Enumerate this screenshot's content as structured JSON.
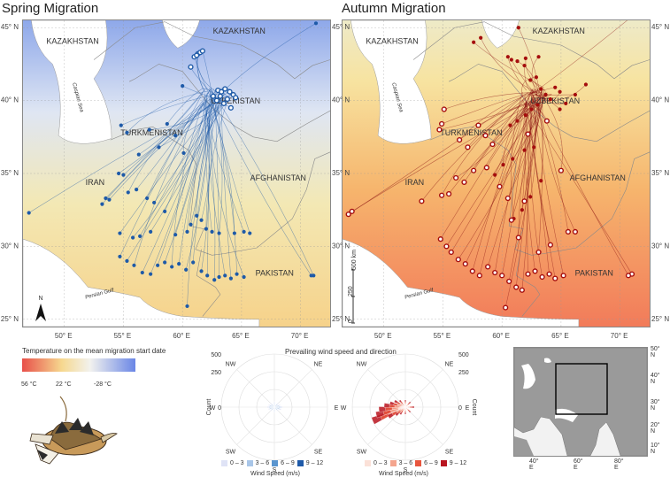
{
  "panels": {
    "spring_title": "Spring Migration",
    "autumn_title": "Autumn Migration"
  },
  "map_labels": {
    "lon_ticks": [
      "50° E",
      "55° E",
      "60° E",
      "65° E",
      "70° E"
    ],
    "lat_ticks": [
      "45° N",
      "40° N",
      "35° N",
      "30° N",
      "25° N"
    ],
    "countries": {
      "kazakhstan": "KAZAKHSTAN",
      "uzbekistan": "UZBEKISTAN",
      "turkmenistan": "TURKMENISTAN",
      "iran": "IRAN",
      "afghanistan": "AFGHANISTAN",
      "pakistan": "PAKISTAN"
    },
    "seas": {
      "aral": "Aral Sea",
      "caspian": "Caspian Sea",
      "gulf": "Persian Gulf"
    },
    "north": "N",
    "scalebar": [
      "500 km",
      "250",
      "0"
    ]
  },
  "temperature_legend": {
    "title": "Temperature on the mean migration start date",
    "labels": [
      "56 °C",
      "22 °C",
      "-28 °C"
    ],
    "colors": [
      "#e8504a",
      "#f6d88f",
      "#f2f2ee",
      "#6a86e6"
    ]
  },
  "wind_rose": {
    "title": "Prevailing wind speed and direction",
    "directions": [
      "N",
      "NE",
      "E",
      "SE",
      "S",
      "SW",
      "W",
      "NW"
    ],
    "count_label": "Count",
    "spring_counts": [
      "500",
      "250",
      "0"
    ],
    "autumn_counts": [
      "500",
      "250",
      "0"
    ],
    "legend_title": "Wind Speed (m/s)",
    "speed_bins": [
      "0 – 3",
      "3 – 6",
      "6 – 9",
      "9 – 12"
    ],
    "spring_colors": [
      "#dfe3f6",
      "#a9c6e8",
      "#5a95cf",
      "#1f5aa8"
    ],
    "autumn_colors": [
      "#fbe1d8",
      "#f4a58e",
      "#e8563e",
      "#b8141f"
    ]
  },
  "inset": {
    "lon_ticks": [
      "40° E",
      "60° E",
      "80° E"
    ],
    "lat_ticks": [
      "50° N",
      "40° N",
      "30° N",
      "20° N",
      "10° N"
    ]
  },
  "chart_data": [
    {
      "type": "scatter",
      "title": "Spring Migration",
      "xlabel": "",
      "ylabel": "",
      "xlim": [
        46.5,
        72.5
      ],
      "ylim": [
        24.5,
        45.5
      ],
      "series": [
        {
          "marker": "filled",
          "color": "#1e5aa8",
          "points": [
            [
              71.3,
              45.3
            ],
            [
              60.0,
              41.0
            ],
            [
              60.7,
              42.3
            ],
            [
              61.0,
              43.0
            ],
            [
              61.3,
              43.2
            ],
            [
              61.5,
              43.3
            ],
            [
              61.7,
              43.4
            ],
            [
              61.2,
              43.1
            ],
            [
              63.0,
              40.7
            ],
            [
              63.3,
              40.6
            ],
            [
              63.6,
              40.8
            ],
            [
              63.2,
              40.3
            ],
            [
              62.9,
              40.0
            ],
            [
              63.8,
              40.1
            ],
            [
              64.0,
              40.6
            ],
            [
              64.3,
              40.4
            ],
            [
              64.5,
              40.2
            ],
            [
              62.6,
              40.3
            ],
            [
              63.5,
              39.8
            ],
            [
              64.1,
              39.5
            ],
            [
              57.2,
              38.0
            ],
            [
              54.8,
              38.3
            ],
            [
              55.3,
              37.8
            ],
            [
              58.7,
              38.4
            ],
            [
              59.4,
              37.6
            ],
            [
              60.1,
              36.4
            ],
            [
              58.0,
              36.8
            ],
            [
              56.3,
              36.3
            ],
            [
              54.6,
              35.0
            ],
            [
              55.0,
              34.9
            ],
            [
              56.1,
              33.9
            ],
            [
              55.4,
              33.7
            ],
            [
              57.0,
              33.3
            ],
            [
              57.6,
              33.0
            ],
            [
              58.5,
              32.4
            ],
            [
              53.5,
              33.3
            ],
            [
              53.8,
              33.2
            ],
            [
              47.0,
              32.3
            ],
            [
              53.2,
              32.9
            ],
            [
              56.4,
              30.7
            ],
            [
              57.3,
              31.0
            ],
            [
              59.4,
              30.8
            ],
            [
              60.4,
              31.0
            ],
            [
              60.7,
              31.5
            ],
            [
              61.2,
              32.1
            ],
            [
              61.6,
              31.8
            ],
            [
              62.0,
              31.2
            ],
            [
              62.5,
              31.0
            ],
            [
              63.1,
              30.9
            ],
            [
              64.4,
              30.9
            ],
            [
              65.2,
              31.0
            ],
            [
              65.7,
              30.9
            ],
            [
              54.7,
              29.3
            ],
            [
              55.3,
              29.0
            ],
            [
              55.9,
              28.7
            ],
            [
              56.6,
              28.2
            ],
            [
              57.3,
              28.1
            ],
            [
              57.9,
              28.7
            ],
            [
              58.5,
              28.9
            ],
            [
              59.1,
              28.6
            ],
            [
              59.7,
              28.8
            ],
            [
              60.3,
              28.4
            ],
            [
              60.9,
              28.9
            ],
            [
              61.6,
              28.3
            ],
            [
              62.1,
              28.0
            ],
            [
              62.7,
              27.7
            ],
            [
              63.1,
              27.9
            ],
            [
              63.6,
              28.0
            ],
            [
              64.1,
              27.8
            ],
            [
              64.6,
              28.1
            ],
            [
              65.2,
              27.9
            ],
            [
              71.1,
              28.0
            ],
            [
              70.9,
              28.0
            ],
            [
              60.4,
              25.9
            ],
            [
              54.7,
              30.9
            ],
            [
              55.8,
              30.6
            ]
          ]
        }
      ]
    },
    {
      "type": "scatter",
      "title": "Autumn Migration",
      "xlabel": "",
      "ylabel": "",
      "xlim": [
        46.5,
        72.5
      ],
      "ylim": [
        24.5,
        45.5
      ],
      "series": [
        {
          "marker": "filled",
          "color": "#a50d0d",
          "points": [
            [
              57.6,
              44.0
            ],
            [
              58.2,
              44.3
            ],
            [
              62.0,
              42.9
            ],
            [
              60.5,
              43.0
            ],
            [
              60.8,
              42.8
            ],
            [
              61.3,
              42.7
            ],
            [
              61.9,
              42.4
            ],
            [
              63.1,
              43.0
            ],
            [
              62.4,
              41.4
            ],
            [
              62.9,
              41.6
            ],
            [
              63.3,
              40.8
            ],
            [
              63.7,
              40.4
            ],
            [
              64.1,
              40.1
            ],
            [
              64.5,
              40.9
            ],
            [
              64.9,
              40.6
            ],
            [
              63.0,
              39.7
            ],
            [
              62.5,
              39.4
            ],
            [
              62.0,
              39.0
            ],
            [
              61.3,
              38.6
            ],
            [
              60.7,
              38.3
            ],
            [
              64.9,
              39.4
            ],
            [
              65.4,
              39.8
            ],
            [
              66.2,
              40.4
            ],
            [
              67.1,
              41.1
            ],
            [
              62.7,
              36.8
            ],
            [
              61.9,
              36.6
            ],
            [
              60.9,
              36.0
            ],
            [
              60.1,
              35.6
            ],
            [
              59.4,
              34.9
            ],
            [
              63.3,
              34.5
            ],
            [
              62.4,
              33.4
            ],
            [
              61.7,
              32.5
            ],
            [
              61.0,
              31.9
            ],
            [
              70.9,
              45.7
            ],
            [
              61.4,
              45.0
            ]
          ]
        },
        {
          "marker": "open",
          "color": "#a50d0d",
          "points": [
            [
              55.1,
              39.4
            ],
            [
              54.9,
              38.4
            ],
            [
              54.7,
              38.0
            ],
            [
              58.0,
              38.3
            ],
            [
              58.6,
              37.6
            ],
            [
              59.2,
              37.0
            ],
            [
              56.4,
              37.3
            ],
            [
              57.1,
              36.8
            ],
            [
              57.6,
              35.2
            ],
            [
              56.1,
              34.7
            ],
            [
              56.8,
              34.4
            ],
            [
              55.5,
              33.6
            ],
            [
              54.9,
              33.5
            ],
            [
              53.2,
              33.1
            ],
            [
              47.3,
              32.4
            ],
            [
              47.0,
              32.2
            ],
            [
              54.8,
              30.5
            ],
            [
              55.3,
              30.0
            ],
            [
              55.7,
              29.6
            ],
            [
              56.3,
              29.1
            ],
            [
              56.9,
              28.8
            ],
            [
              57.5,
              28.3
            ],
            [
              58.1,
              28.0
            ],
            [
              58.8,
              28.6
            ],
            [
              59.4,
              28.2
            ],
            [
              60.0,
              28.0
            ],
            [
              60.6,
              27.6
            ],
            [
              61.2,
              27.2
            ],
            [
              61.7,
              27.0
            ],
            [
              62.2,
              28.1
            ],
            [
              62.8,
              28.3
            ],
            [
              63.4,
              27.9
            ],
            [
              64.0,
              28.1
            ],
            [
              64.5,
              27.8
            ],
            [
              65.2,
              28.0
            ],
            [
              66.2,
              31.0
            ],
            [
              65.6,
              31.0
            ],
            [
              71.0,
              28.1
            ],
            [
              70.7,
              28.0
            ],
            [
              60.3,
              25.8
            ],
            [
              63.1,
              29.6
            ],
            [
              64.1,
              30.1
            ],
            [
              61.4,
              30.6
            ],
            [
              60.8,
              31.8
            ],
            [
              61.9,
              33.1
            ],
            [
              60.5,
              33.3
            ],
            [
              59.8,
              34.1
            ],
            [
              58.7,
              35.4
            ],
            [
              65.0,
              35.2
            ],
            [
              62.2,
              37.7
            ],
            [
              63.8,
              38.6
            ]
          ]
        }
      ]
    }
  ]
}
